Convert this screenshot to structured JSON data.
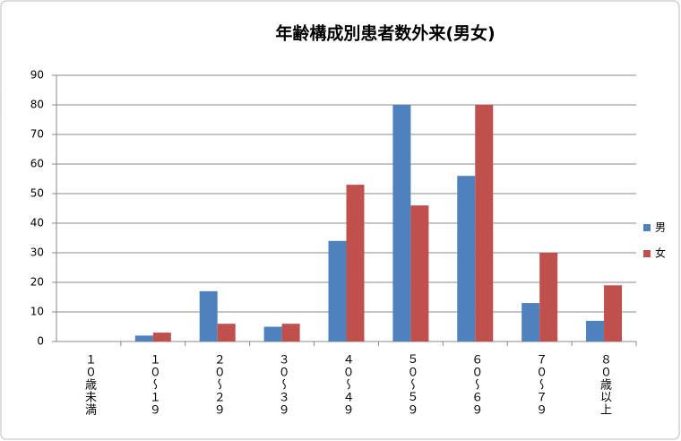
{
  "chart_data": {
    "type": "bar",
    "title": "年齢構成別患者数外来(男女)",
    "categories": [
      "１０歳未満",
      "１０～１９",
      "２０～２９",
      "３０～３９",
      "４０～４９",
      "５０～５９",
      "６０～６９",
      "７０～７９",
      "８０歳以上"
    ],
    "series": [
      {
        "name": "男",
        "color": "#4f81bd",
        "values": [
          0,
          2,
          17,
          5,
          34,
          80,
          56,
          13,
          7
        ]
      },
      {
        "name": "女",
        "color": "#c0504d",
        "values": [
          0,
          3,
          6,
          6,
          53,
          46,
          80,
          30,
          19
        ]
      }
    ],
    "ylim": [
      0,
      90
    ],
    "yticks": [
      0,
      10,
      20,
      30,
      40,
      50,
      60,
      70,
      80,
      90
    ],
    "grid": true,
    "legend": "right"
  }
}
